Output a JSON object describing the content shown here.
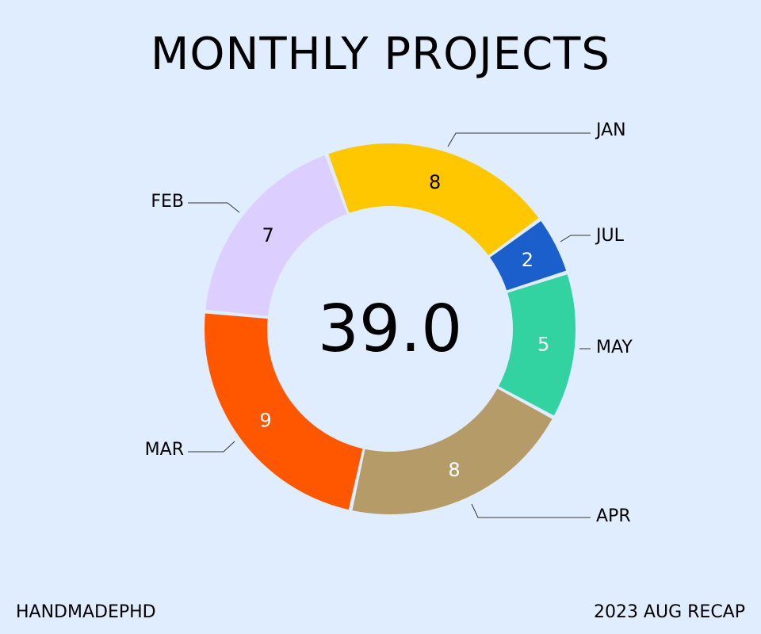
{
  "header": {
    "title": "MONTHLY PROJECTS"
  },
  "footer": {
    "left": "HANDMADEPHD",
    "right": "2023 AUG RECAP"
  },
  "chart_data": {
    "type": "pie",
    "style": "donut",
    "title": "MONTHLY PROJECTS",
    "center_label": "39.0",
    "slices": [
      {
        "label": "JAN",
        "value": 8,
        "color": "#ffc700",
        "text_color": "#000000"
      },
      {
        "label": "JUL",
        "value": 2,
        "color": "#1a5fcb",
        "text_color": "#ffffff"
      },
      {
        "label": "MAY",
        "value": 5,
        "color": "#32d3a0",
        "text_color": "#ffffff"
      },
      {
        "label": "APR",
        "value": 8,
        "color": "#b59b68",
        "text_color": "#ffffff"
      },
      {
        "label": "MAR",
        "value": 9,
        "color": "#ff5700",
        "text_color": "#ffffff"
      },
      {
        "label": "FEB",
        "value": 7,
        "color": "#dccfff",
        "text_color": "#000000"
      }
    ],
    "background": "#e0edfe"
  }
}
